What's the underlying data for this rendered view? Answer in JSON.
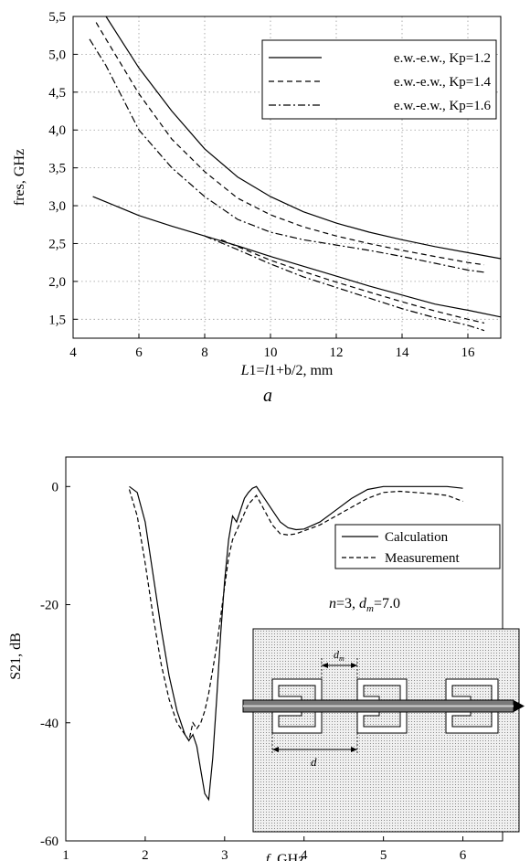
{
  "chart_data": [
    {
      "type": "line",
      "panel_label": "a",
      "xlabel_italic": "L",
      "xlabel_rest": "1=",
      "xlabel_italic2": "l",
      "xlabel_rest2": "1+b/2, mm",
      "ylabel": "fres, GHz",
      "xlim": [
        4,
        17
      ],
      "ylim": [
        1.25,
        5.5
      ],
      "xticks": [
        "4",
        "6",
        "8",
        "10",
        "12",
        "14",
        "16"
      ],
      "yticks": [
        "1,5",
        "2,0",
        "2,5",
        "3,0",
        "3,5",
        "4,0",
        "4,5",
        "5,0",
        "5,5"
      ],
      "grid": true,
      "legend_position": "top-right",
      "series": [
        {
          "name": "e.w.-e.w., Kp=1.2",
          "style": "solid",
          "branch": "upper",
          "x": [
            5.0,
            6.0,
            7.0,
            8.0,
            9.0,
            10.0,
            11.0,
            12.0,
            13.0,
            14.0,
            15.0,
            16.0,
            17.0
          ],
          "y": [
            5.5,
            4.82,
            4.25,
            3.75,
            3.38,
            3.12,
            2.92,
            2.77,
            2.65,
            2.55,
            2.46,
            2.38,
            2.3
          ]
        },
        {
          "name": "e.w.-e.w., Kp=1.2",
          "style": "solid",
          "branch": "lower",
          "x": [
            4.6,
            5.0,
            6.0,
            7.0,
            8.0,
            9.0,
            10.0,
            11.0,
            12.0,
            13.0,
            14.0,
            15.0,
            16.0,
            17.0
          ],
          "y": [
            3.12,
            3.05,
            2.87,
            2.73,
            2.6,
            2.47,
            2.33,
            2.2,
            2.07,
            1.94,
            1.82,
            1.7,
            1.62,
            1.53
          ]
        },
        {
          "name": "e.w.-e.w., Kp=1.4",
          "style": "dash",
          "branch": "upper",
          "x": [
            4.7,
            5.0,
            6.0,
            7.0,
            8.0,
            9.0,
            10.0,
            11.0,
            12.0,
            13.0,
            14.0,
            15.0,
            16.0,
            16.5
          ],
          "y": [
            5.42,
            5.2,
            4.48,
            3.88,
            3.45,
            3.1,
            2.88,
            2.72,
            2.6,
            2.5,
            2.41,
            2.33,
            2.25,
            2.22
          ]
        },
        {
          "name": "e.w.-e.w., Kp=1.4",
          "style": "dash",
          "branch": "lower",
          "x": [
            8.5,
            9.0,
            10.0,
            11.0,
            12.0,
            13.0,
            14.0,
            15.0,
            16.0,
            16.5
          ],
          "y": [
            2.55,
            2.46,
            2.28,
            2.13,
            1.99,
            1.86,
            1.73,
            1.61,
            1.5,
            1.45
          ]
        },
        {
          "name": "e.w.-e.w., Kp=1.6",
          "style": "dashdot",
          "branch": "upper",
          "x": [
            4.5,
            5.0,
            6.0,
            7.0,
            8.0,
            9.0,
            10.0,
            11.0,
            12.0,
            13.0,
            14.0,
            15.0,
            16.0,
            16.5
          ],
          "y": [
            5.2,
            4.85,
            4.0,
            3.5,
            3.12,
            2.82,
            2.65,
            2.55,
            2.48,
            2.41,
            2.33,
            2.24,
            2.15,
            2.12
          ]
        },
        {
          "name": "e.w.-e.w., Kp=1.6",
          "style": "dashdot",
          "branch": "lower",
          "x": [
            8.0,
            9.0,
            10.0,
            11.0,
            12.0,
            13.0,
            14.0,
            15.0,
            16.0,
            16.5
          ],
          "y": [
            2.6,
            2.42,
            2.23,
            2.06,
            1.92,
            1.78,
            1.64,
            1.52,
            1.42,
            1.35
          ]
        }
      ]
    },
    {
      "type": "line",
      "panel_label": "b",
      "xlabel_italic": "f",
      "xlabel_rest": ", GHz",
      "ylabel": "S21, dB",
      "xlim": [
        1,
        6.5
      ],
      "ylim": [
        -60,
        5
      ],
      "xticks": [
        "1",
        "2",
        "3",
        "4",
        "5",
        "6"
      ],
      "yticks": [
        "0",
        "-20",
        "-40",
        "-60"
      ],
      "grid": false,
      "legend_position": "right",
      "annotation_n": "n",
      "annotation_n_value": "=3, ",
      "annotation_d": "d",
      "annotation_d_sub": "m",
      "annotation_d_value": "=7.0",
      "inset_label_dm": "d",
      "inset_label_dm_sub": "m",
      "inset_label_d": "d",
      "series": [
        {
          "name": "Calculation",
          "style": "solid",
          "x": [
            1.8,
            1.9,
            2.0,
            2.1,
            2.2,
            2.3,
            2.4,
            2.5,
            2.55,
            2.6,
            2.65,
            2.7,
            2.75,
            2.8,
            2.85,
            2.9,
            2.95,
            3.0,
            3.05,
            3.1,
            3.15,
            3.2,
            3.25,
            3.3,
            3.35,
            3.4,
            3.5,
            3.6,
            3.7,
            3.8,
            3.9,
            4.0,
            4.2,
            4.4,
            4.6,
            4.8,
            5.0,
            5.2,
            5.4,
            5.6,
            5.8,
            6.0
          ],
          "y": [
            0,
            -1,
            -6,
            -15,
            -24,
            -32,
            -38,
            -42,
            -43,
            -42,
            -44,
            -48,
            -52,
            -53,
            -46,
            -36,
            -25,
            -16,
            -9,
            -5,
            -6,
            -4,
            -2,
            -1,
            -0.3,
            0,
            -2,
            -4,
            -6,
            -7,
            -7.3,
            -7.2,
            -6,
            -4,
            -2,
            -0.5,
            0,
            0,
            0,
            0,
            0,
            -0.3
          ]
        },
        {
          "name": "Measurement",
          "style": "dash",
          "x": [
            1.8,
            1.9,
            2.0,
            2.1,
            2.2,
            2.3,
            2.4,
            2.5,
            2.55,
            2.6,
            2.65,
            2.7,
            2.75,
            2.8,
            2.85,
            2.9,
            2.95,
            3.0,
            3.05,
            3.1,
            3.2,
            3.3,
            3.4,
            3.5,
            3.6,
            3.7,
            3.8,
            3.9,
            4.0,
            4.2,
            4.4,
            4.6,
            4.8,
            5.0,
            5.2,
            5.4,
            5.6,
            5.8,
            6.0
          ],
          "y": [
            -0.5,
            -5,
            -13,
            -22,
            -30,
            -36,
            -40,
            -42,
            -43,
            -40,
            -41,
            -40,
            -38,
            -35,
            -31,
            -27,
            -22,
            -17,
            -12,
            -9,
            -6,
            -3,
            -1.5,
            -4,
            -6.5,
            -8,
            -8.2,
            -8,
            -7.5,
            -6.5,
            -5,
            -3.5,
            -2,
            -1,
            -0.8,
            -1,
            -1.2,
            -1.5,
            -2.5
          ]
        }
      ]
    }
  ]
}
